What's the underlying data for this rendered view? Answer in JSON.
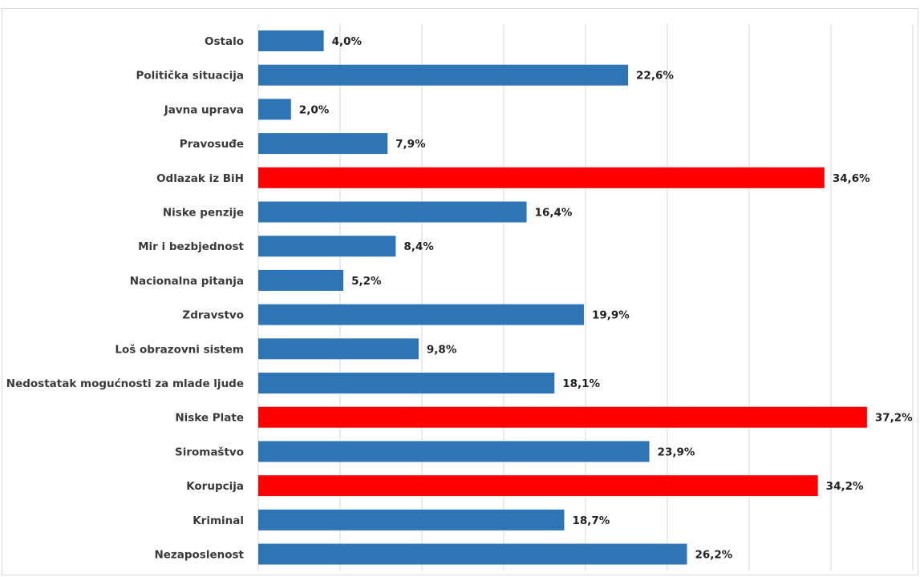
{
  "colors": {
    "default_bar": "#2e75b6",
    "highlight_bar": "#ff0000",
    "gridline": "#d9d9d9",
    "label_text": "#3a3a3a",
    "value_text": "#222222"
  },
  "chart_data": {
    "type": "bar",
    "orientation": "horizontal",
    "title": "",
    "xlabel": "",
    "ylabel": "",
    "xlim": [
      0,
      40
    ],
    "grid": "vertical gridlines",
    "value_format": "percent, one decimal, comma separator",
    "categories": [
      "Ostalo",
      "Politička situacija",
      "Javna uprava",
      "Pravosuđe",
      "Odlazak iz BiH",
      "Niske penzije",
      "Mir i bezbjednost",
      "Nacionalna pitanja",
      "Zdravstvo",
      "Loš obrazovni sistem",
      "Nedostatak mogućnosti za mlade ljude",
      "Niske Plate",
      "Siromaštvo",
      "Korupcija",
      "Kriminal",
      "Nezaposlenost"
    ],
    "values": [
      4.0,
      22.6,
      2.0,
      7.9,
      34.6,
      16.4,
      8.4,
      5.2,
      19.9,
      9.8,
      18.1,
      37.2,
      23.9,
      34.2,
      18.7,
      26.2
    ],
    "value_labels": [
      "4,0%",
      "22,6%",
      "2,0%",
      "7,9%",
      "34,6%",
      "16,4%",
      "8,4%",
      "5,2%",
      "19,9%",
      "9,8%",
      "18,1%",
      "37,2%",
      "23,9%",
      "34,2%",
      "18,7%",
      "26,2%"
    ],
    "highlighted": [
      "Odlazak iz BiH",
      "Niske Plate",
      "Korupcija"
    ]
  }
}
